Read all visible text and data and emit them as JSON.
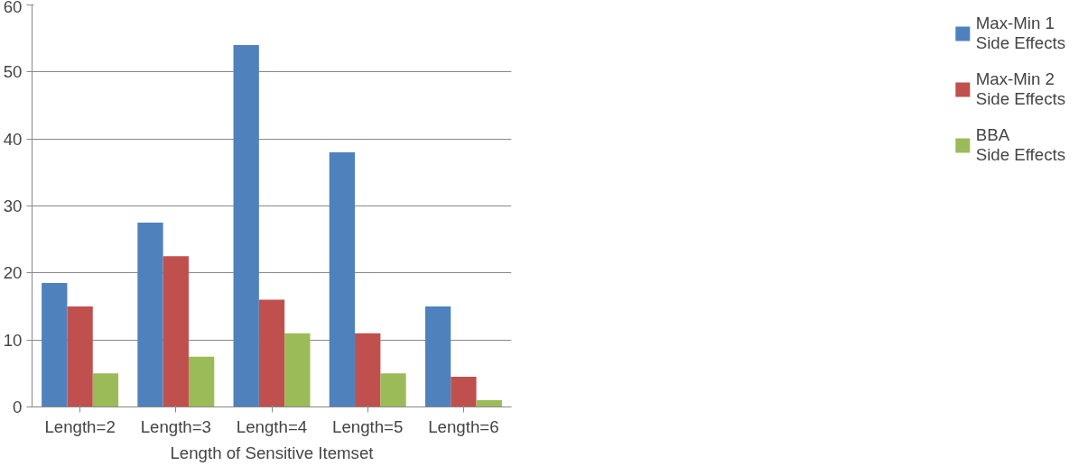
{
  "chart_data": {
    "type": "bar",
    "xlabel": "Length of Sensitive Itemset",
    "categories": [
      "Length=2",
      "Length=3",
      "Length=4",
      "Length=5",
      "Length=6"
    ],
    "series": [
      {
        "name": "Max-Min 1\nSide Effects",
        "color": "#4f81bd",
        "values": [
          18.5,
          27.5,
          54,
          38,
          15
        ]
      },
      {
        "name": "Max-Min 2\nSide Effects",
        "color": "#c0504d",
        "values": [
          15,
          22.5,
          16,
          11,
          4.5
        ]
      },
      {
        "name": "BBA\nSide Effects",
        "color": "#9bbb59",
        "values": [
          5,
          7.5,
          11,
          5,
          1
        ]
      }
    ],
    "ylim": [
      0,
      60
    ],
    "yticks": [
      0,
      10,
      20,
      30,
      40,
      50,
      60
    ],
    "grid": "y",
    "legend": "right"
  }
}
